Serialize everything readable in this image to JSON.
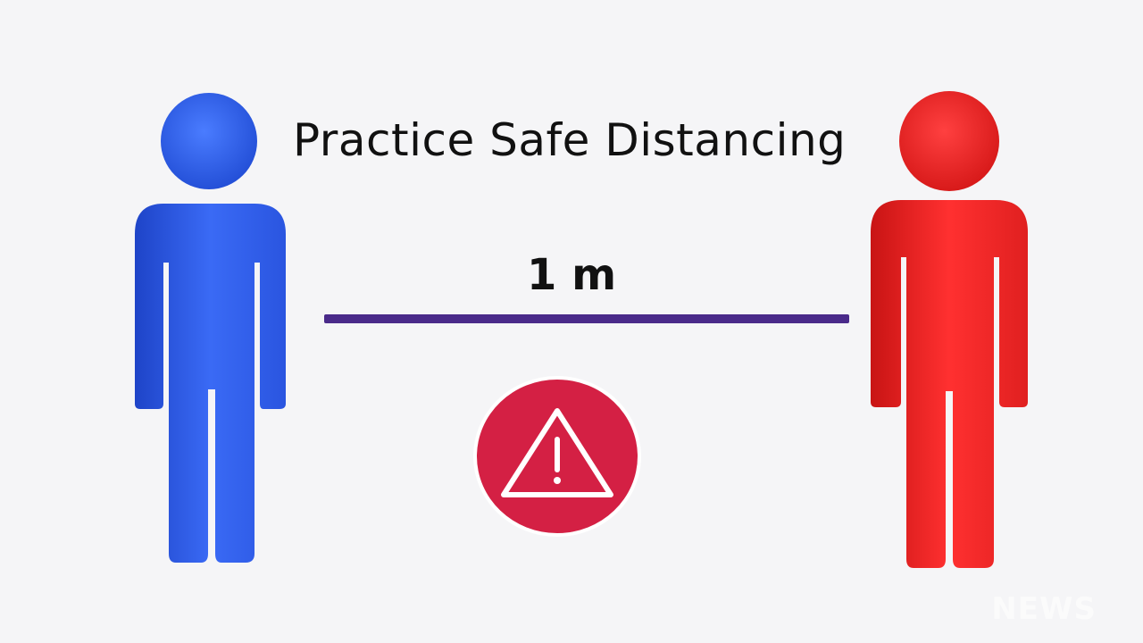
{
  "banner": {
    "title": "Practice Safe Distancing",
    "distance_label": "1 m"
  },
  "figures": {
    "left": {
      "icon": "person-icon",
      "color": "#2f5de8"
    },
    "right": {
      "icon": "person-icon",
      "color": "#ee2222"
    }
  },
  "warning": {
    "icon": "warning-icon",
    "color": "#d42044"
  },
  "line_color": "#4a2a8a",
  "watermark": {
    "text": "NEWS"
  }
}
